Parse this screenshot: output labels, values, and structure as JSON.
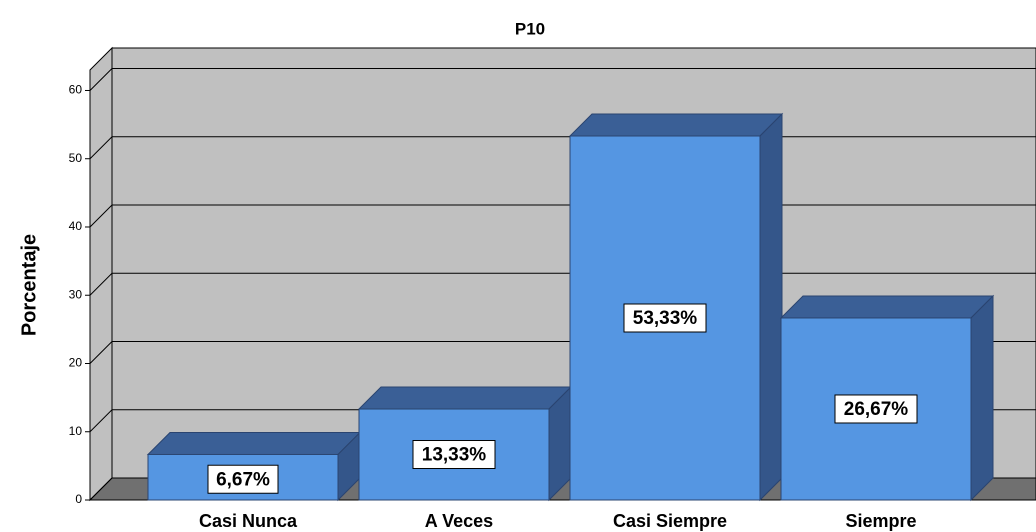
{
  "chart_data": {
    "type": "bar3d",
    "title": "P10",
    "y_label": "Porcentaje",
    "categories": [
      "Casi Nunca",
      "A Veces",
      "Casi Siempre",
      "Siempre"
    ],
    "values": [
      6.67,
      13.33,
      53.33,
      26.67
    ],
    "value_labels": [
      "6,67%",
      "13,33%",
      "53,33%",
      "26,67%"
    ],
    "color": "#5596e2",
    "ylim": [
      0,
      63
    ],
    "yticks": [
      0,
      10,
      20,
      30,
      40,
      50,
      60
    ],
    "grid": true
  }
}
